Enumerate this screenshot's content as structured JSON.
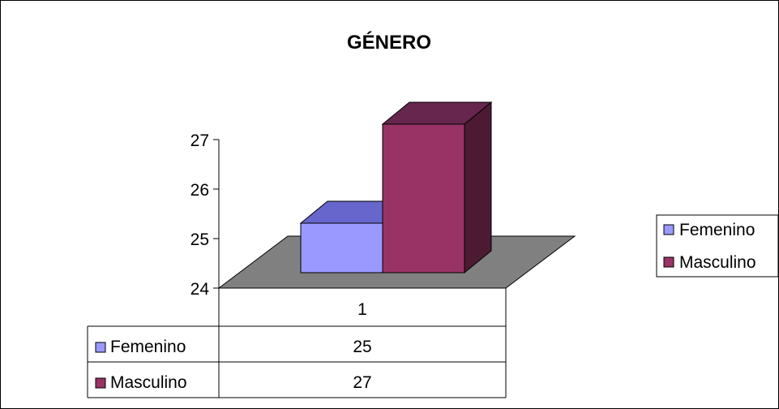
{
  "chart_data": {
    "type": "bar",
    "title": "GÉNERO",
    "categories": [
      "1"
    ],
    "series": [
      {
        "name": "Femenino",
        "values": [
          25
        ],
        "color": "#9999FF",
        "top_color": "#6666CC",
        "side_color": "#4D4D99"
      },
      {
        "name": "Masculino",
        "values": [
          27
        ],
        "color": "#993366",
        "top_color": "#66264D",
        "side_color": "#4D1A33"
      }
    ],
    "y_ticks": [
      "24",
      "25",
      "26",
      "27"
    ],
    "ylim": [
      24,
      27
    ],
    "floor_color": "#808080",
    "legend_position": "right",
    "data_table": true
  }
}
